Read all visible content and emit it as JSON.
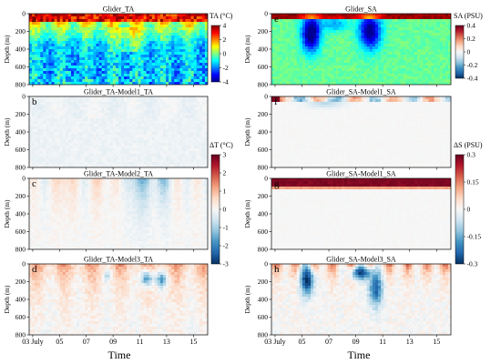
{
  "figure": {
    "x_title": "Time",
    "y_label": "Depth (m)",
    "depth_ticks": [
      "0",
      "200",
      "400",
      "600",
      "800"
    ],
    "time_ticks": [
      "03 July",
      "05",
      "07",
      "09",
      "11",
      "13",
      "15"
    ]
  },
  "chart_data": [
    {
      "type": "heatmap",
      "panel": "a",
      "title": "Glider_TA",
      "variable": "TA",
      "unit": "°C",
      "colorbar_label": "TA (°C)",
      "colorbar_ticks": [
        4,
        2,
        0,
        -2,
        -4
      ],
      "clim": [
        -4,
        4
      ],
      "ylim": [
        0,
        800
      ],
      "ylabel": "Depth (m)",
      "x": [
        "03 July",
        "05",
        "07",
        "09",
        "11",
        "13",
        "15"
      ],
      "y": [
        0,
        200,
        400,
        600,
        800
      ]
    },
    {
      "type": "heatmap",
      "panel": "b",
      "title": "Glider_TA-Model1_TA",
      "variable": "ΔT",
      "unit": "°C",
      "colorbar_label": "ΔT (°C)",
      "colorbar_ticks": [
        3,
        2,
        1,
        0,
        -1,
        -2,
        -3
      ],
      "clim": [
        -3,
        3
      ],
      "ylim": [
        0,
        800
      ],
      "ylabel": "Depth (m)",
      "x": [
        "03 July",
        "05",
        "07",
        "09",
        "11",
        "13",
        "15"
      ],
      "y": [
        0,
        200,
        400,
        600,
        800
      ]
    },
    {
      "type": "heatmap",
      "panel": "c",
      "title": "Glider_TA-Model2_TA",
      "variable": "ΔT",
      "unit": "°C",
      "clim": [
        -3,
        3
      ],
      "ylim": [
        0,
        800
      ],
      "ylabel": "Depth (m)",
      "x": [
        "03 July",
        "05",
        "07",
        "09",
        "11",
        "13",
        "15"
      ],
      "y": [
        0,
        200,
        400,
        600,
        800
      ]
    },
    {
      "type": "heatmap",
      "panel": "d",
      "title": "Glider_TA-Model3_TA",
      "variable": "ΔT",
      "unit": "°C",
      "clim": [
        -3,
        3
      ],
      "ylim": [
        0,
        800
      ],
      "ylabel": "Depth (m)",
      "x": [
        "03 July",
        "05",
        "07",
        "09",
        "11",
        "13",
        "15"
      ],
      "y": [
        0,
        200,
        400,
        600,
        800
      ]
    },
    {
      "type": "heatmap",
      "panel": "e",
      "title": "Glider_SA",
      "variable": "SA",
      "unit": "PSU",
      "colorbar_label": "SA (PSU)",
      "colorbar_ticks": [
        0.4,
        0.2,
        0,
        -0.2,
        -0.4
      ],
      "clim": [
        -0.4,
        0.4
      ],
      "ylim": [
        0,
        800
      ],
      "ylabel": "",
      "x": [
        "03 July",
        "05",
        "07",
        "09",
        "11",
        "13",
        "15"
      ],
      "y": [
        0,
        200,
        400,
        600,
        800
      ]
    },
    {
      "type": "heatmap",
      "panel": "f",
      "title": "Glider_SA-Model1_SA",
      "variable": "ΔS",
      "unit": "PSU",
      "colorbar_label": "ΔS (PSU)",
      "colorbar_ticks": [
        0.3,
        0.15,
        0,
        -0.15,
        -0.3
      ],
      "clim": [
        -0.3,
        0.3
      ],
      "ylim": [
        0,
        800
      ],
      "ylabel": "",
      "x": [
        "03 July",
        "05",
        "07",
        "09",
        "11",
        "13",
        "15"
      ],
      "y": [
        0,
        200,
        400,
        600,
        800
      ]
    },
    {
      "type": "heatmap",
      "panel": "g",
      "title": "Glider_SA-Model1_SA",
      "variable": "ΔS",
      "unit": "PSU",
      "clim": [
        -0.3,
        0.3
      ],
      "ylim": [
        0,
        800
      ],
      "ylabel": "",
      "x": [
        "03 July",
        "05",
        "07",
        "09",
        "11",
        "13",
        "15"
      ],
      "y": [
        0,
        200,
        400,
        600,
        800
      ]
    },
    {
      "type": "heatmap",
      "panel": "h",
      "title": "Glider_SA-Model3_SA",
      "variable": "ΔS",
      "unit": "PSU",
      "clim": [
        -0.3,
        0.3
      ],
      "ylim": [
        0,
        800
      ],
      "ylabel": "",
      "x": [
        "03 July",
        "05",
        "07",
        "09",
        "11",
        "13",
        "15"
      ],
      "y": [
        0,
        200,
        400,
        600,
        800
      ]
    }
  ],
  "colors": {
    "jet": [
      "#00008f",
      "#0000ff",
      "#0080ff",
      "#00ffff",
      "#80ff80",
      "#ffff00",
      "#ff8000",
      "#ff0000",
      "#800000"
    ],
    "diverging": [
      "#053061",
      "#2166ac",
      "#4393c3",
      "#92c5de",
      "#d1e5f0",
      "#f7f7f7",
      "#fddbc7",
      "#f4a582",
      "#d6604d",
      "#b2182b",
      "#67001f"
    ]
  }
}
